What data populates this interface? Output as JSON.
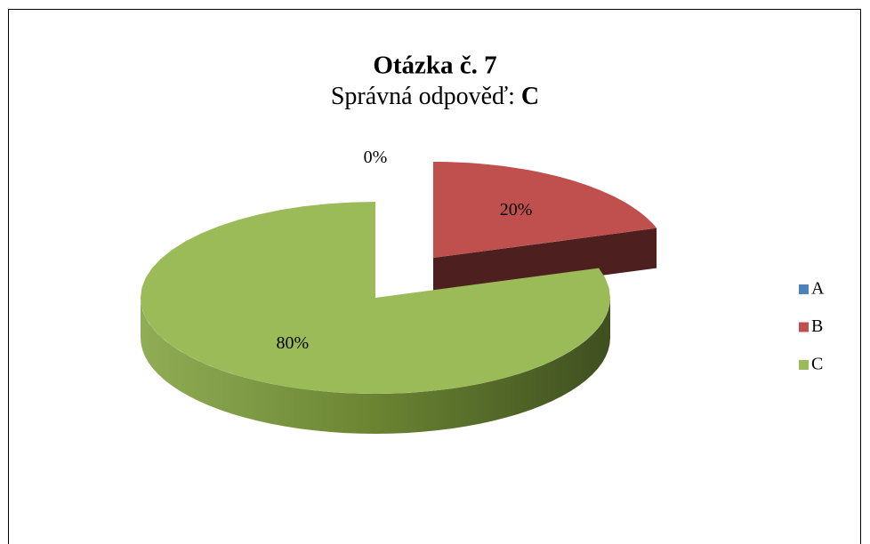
{
  "chart_data": {
    "type": "pie3d",
    "title": "Otázka č. 7",
    "subtitle": {
      "text": "Správná odpověď:",
      "answer": "C"
    },
    "categories": [
      "A",
      "B",
      "C"
    ],
    "values": [
      0,
      20,
      80
    ],
    "value_labels": [
      "0%",
      "20%",
      "80%"
    ],
    "colors": [
      "#4f81bd",
      "#c0504d",
      "#9bbb59"
    ],
    "exploded": "B",
    "legend": "right"
  }
}
